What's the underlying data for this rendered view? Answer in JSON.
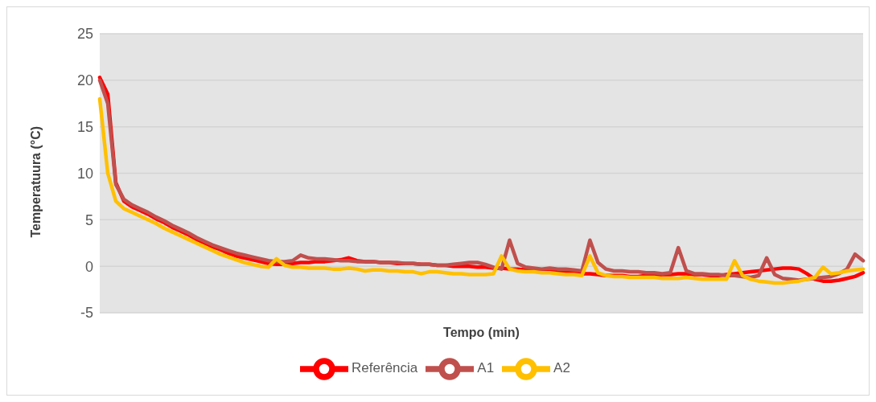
{
  "chart_data": {
    "type": "line",
    "xlabel": "Tempo (min)",
    "ylabel": "Temperatuura (°C)",
    "categories": [
      null,
      null,
      null,
      null,
      null,
      null,
      null,
      null,
      null,
      null,
      null,
      null,
      null,
      null,
      null,
      null,
      null,
      null,
      null,
      null,
      null,
      null,
      null,
      null,
      null,
      null,
      null,
      null,
      null,
      null,
      null,
      null,
      null,
      null,
      null,
      null,
      null,
      null,
      null,
      null,
      null,
      null,
      null,
      null,
      null,
      null,
      null,
      null,
      null,
      null,
      null,
      null,
      null,
      null,
      null,
      null,
      null,
      null,
      null,
      null,
      null,
      null,
      null,
      null,
      null,
      null,
      null,
      null,
      null,
      null,
      null,
      null,
      null,
      null,
      null,
      null,
      null,
      null,
      null,
      null,
      null,
      null,
      null,
      null,
      null,
      null,
      null,
      null,
      null,
      null,
      null,
      null,
      null,
      null,
      null,
      null
    ],
    "series": [
      {
        "name": "Referência",
        "color": "#ff0000",
        "values": [
          20.3,
          18.5,
          9.0,
          7.0,
          6.4,
          6.0,
          5.6,
          5.1,
          4.7,
          4.2,
          3.8,
          3.4,
          2.9,
          2.5,
          2.1,
          1.8,
          1.4,
          1.1,
          0.9,
          0.7,
          0.5,
          0.3,
          0.2,
          0.2,
          0.3,
          0.4,
          0.4,
          0.5,
          0.5,
          0.6,
          0.7,
          0.9,
          0.6,
          0.5,
          0.5,
          0.4,
          0.4,
          0.3,
          0.3,
          0.3,
          0.2,
          0.2,
          0.1,
          0.1,
          0.0,
          0.0,
          0.0,
          -0.1,
          -0.1,
          -0.2,
          -0.2,
          -0.3,
          -0.3,
          -0.4,
          -0.4,
          -0.5,
          -0.5,
          -0.6,
          -0.6,
          -0.7,
          -0.8,
          -0.8,
          -0.9,
          -1.0,
          -1.0,
          -1.0,
          -1.1,
          -1.1,
          -1.0,
          -1.0,
          -0.9,
          -0.9,
          -0.8,
          -0.8,
          -0.9,
          -0.9,
          -1.0,
          -1.0,
          -0.9,
          -0.8,
          -0.7,
          -0.6,
          -0.5,
          -0.4,
          -0.3,
          -0.2,
          -0.2,
          -0.3,
          -0.8,
          -1.4,
          -1.6,
          -1.6,
          -1.5,
          -1.3,
          -1.1,
          -0.7
        ]
      },
      {
        "name": "A1",
        "color": "#c0504d",
        "values": [
          20.0,
          17.5,
          8.8,
          7.2,
          6.6,
          6.2,
          5.8,
          5.3,
          4.9,
          4.4,
          4.0,
          3.6,
          3.1,
          2.7,
          2.3,
          2.0,
          1.7,
          1.4,
          1.2,
          1.0,
          0.8,
          0.6,
          0.5,
          0.5,
          0.6,
          1.2,
          0.9,
          0.8,
          0.8,
          0.7,
          0.6,
          0.6,
          0.5,
          0.5,
          0.5,
          0.4,
          0.4,
          0.4,
          0.3,
          0.3,
          0.2,
          0.2,
          0.1,
          0.1,
          0.2,
          0.3,
          0.4,
          0.4,
          0.2,
          -0.1,
          -0.3,
          2.8,
          0.3,
          -0.1,
          -0.2,
          -0.3,
          -0.2,
          -0.3,
          -0.3,
          -0.4,
          -0.5,
          2.8,
          0.4,
          -0.3,
          -0.5,
          -0.5,
          -0.6,
          -0.6,
          -0.7,
          -0.7,
          -0.8,
          -0.7,
          2.0,
          -0.5,
          -0.8,
          -0.8,
          -0.9,
          -0.9,
          -1.0,
          -1.0,
          -1.1,
          -1.2,
          -1.0,
          0.9,
          -0.9,
          -1.3,
          -1.4,
          -1.5,
          -1.4,
          -1.3,
          -1.2,
          -1.1,
          -0.8,
          -0.3,
          1.3,
          0.6
        ]
      },
      {
        "name": "A2",
        "color": "#ffc000",
        "values": [
          18.0,
          10.0,
          7.0,
          6.2,
          5.8,
          5.4,
          5.0,
          4.6,
          4.1,
          3.7,
          3.3,
          2.9,
          2.5,
          2.1,
          1.7,
          1.3,
          1.0,
          0.7,
          0.4,
          0.2,
          0.0,
          -0.1,
          0.8,
          0.1,
          -0.1,
          -0.1,
          -0.2,
          -0.2,
          -0.2,
          -0.3,
          -0.3,
          -0.2,
          -0.3,
          -0.5,
          -0.4,
          -0.4,
          -0.5,
          -0.5,
          -0.6,
          -0.6,
          -0.8,
          -0.6,
          -0.6,
          -0.7,
          -0.8,
          -0.8,
          -0.9,
          -0.9,
          -0.9,
          -0.8,
          1.1,
          -0.3,
          -0.5,
          -0.6,
          -0.6,
          -0.7,
          -0.7,
          -0.8,
          -0.9,
          -0.9,
          -1.0,
          1.1,
          -0.7,
          -1.0,
          -1.1,
          -1.1,
          -1.2,
          -1.2,
          -1.2,
          -1.2,
          -1.3,
          -1.3,
          -1.3,
          -1.2,
          -1.3,
          -1.4,
          -1.4,
          -1.4,
          -1.4,
          0.6,
          -1.0,
          -1.4,
          -1.6,
          -1.7,
          -1.8,
          -1.8,
          -1.7,
          -1.6,
          -1.4,
          -1.2,
          -0.1,
          -0.8,
          -0.7,
          -0.5,
          -0.4,
          -0.3
        ]
      }
    ],
    "ylim": [
      -5,
      25
    ],
    "yticks": [
      -5,
      0,
      5,
      10,
      15,
      20,
      25
    ],
    "grid": "y",
    "legend": "bottom",
    "marker": "none",
    "line_style": "solid"
  }
}
